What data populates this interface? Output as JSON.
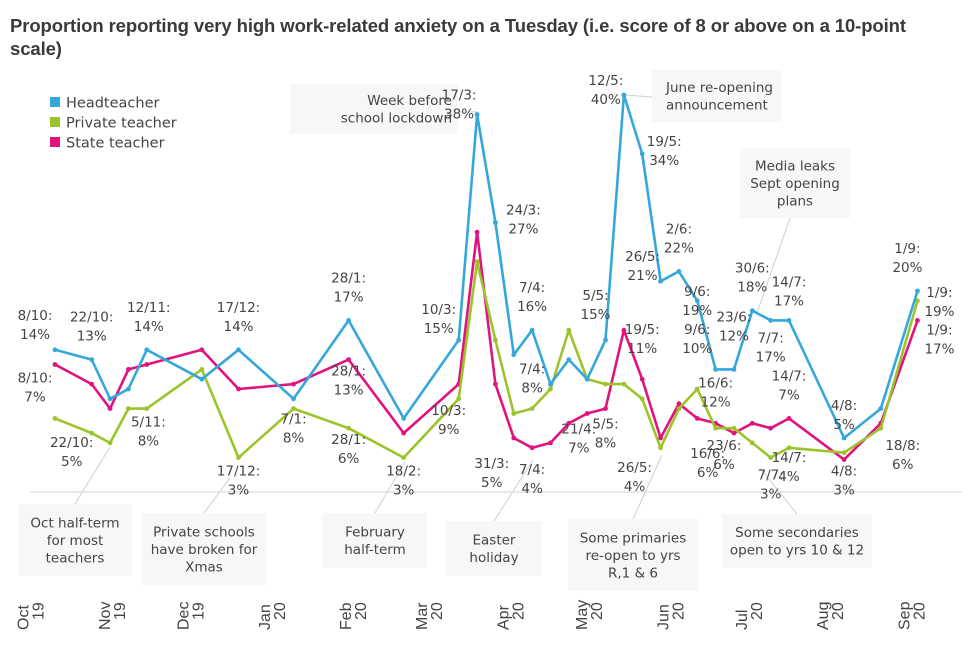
{
  "chart_data": {
    "type": "line",
    "title": "Proportion reporting very high work-related anxiety on a Tuesday (i.e. score of 8 or above on a 10-point scale)",
    "xlabel": "",
    "ylabel": "",
    "ylim": [
      0,
      45
    ],
    "grid": false,
    "legend_position": "top-left",
    "x": [
      "8/10",
      "22/10",
      "29/10",
      "5/11",
      "12/11",
      "3/12",
      "17/12",
      "7/1",
      "28/1",
      "18/2",
      "10/3",
      "17/3",
      "24/3",
      "31/3",
      "7/4",
      "14/4",
      "21/4",
      "28/4",
      "5/5",
      "12/5",
      "19/5",
      "26/5",
      "2/6",
      "9/6",
      "16/6",
      "23/6",
      "30/6",
      "7/7",
      "14/7",
      "4/8",
      "18/8",
      "1/9"
    ],
    "x_week_offsets": [
      0,
      2,
      3,
      4,
      5,
      8,
      10,
      13,
      16,
      19,
      22,
      23,
      24,
      25,
      26,
      27,
      28,
      29,
      30,
      31,
      32,
      33,
      34,
      35,
      36,
      37,
      38,
      39,
      40,
      43,
      45,
      47
    ],
    "x_tick_labels": [
      {
        "label": [
          "Oct",
          "19"
        ],
        "week": -1
      },
      {
        "label": [
          "Nov",
          "19"
        ],
        "week": 3.43
      },
      {
        "label": [
          "Dec",
          "19"
        ],
        "week": 7.71
      },
      {
        "label": [
          "Jan",
          "20"
        ],
        "week": 12.14
      },
      {
        "label": [
          "Feb",
          "20"
        ],
        "week": 16.57
      },
      {
        "label": [
          "Mar",
          "20"
        ],
        "week": 20.71
      },
      {
        "label": [
          "Apr",
          "20"
        ],
        "week": 25.14
      },
      {
        "label": [
          "May",
          "20"
        ],
        "week": 29.43
      },
      {
        "label": [
          "Jun",
          "20"
        ],
        "week": 33.86
      },
      {
        "label": [
          "Jul",
          "20"
        ],
        "week": 38.14
      },
      {
        "label": [
          "Aug",
          "20"
        ],
        "week": 42.57
      },
      {
        "label": [
          "Sep",
          "20"
        ],
        "week": 47
      }
    ],
    "series": [
      {
        "name": "Headteacher",
        "color": "#35a7db",
        "values": [
          14,
          13,
          9,
          10,
          14,
          11,
          14,
          9,
          17,
          7,
          15,
          38,
          27,
          13.5,
          16,
          10.5,
          13,
          11,
          15,
          40,
          34,
          21,
          22,
          19,
          12,
          12,
          18,
          17,
          17,
          5,
          8,
          20
        ]
      },
      {
        "name": "Private teacher",
        "color": "#9bc42a",
        "values": [
          7,
          5.5,
          4.5,
          8,
          8,
          12,
          3,
          8,
          6,
          3,
          9,
          23,
          15,
          7.5,
          8,
          10,
          16,
          11,
          10.5,
          10.5,
          9,
          4,
          8,
          10,
          6,
          6,
          4.5,
          3,
          4,
          3.5,
          6,
          19
        ]
      },
      {
        "name": "State teacher",
        "color": "#e0137f",
        "values": [
          12.5,
          10.5,
          8,
          12,
          12.5,
          14,
          10,
          10.5,
          13,
          5.5,
          10.5,
          26,
          10.5,
          5,
          4,
          4.5,
          6.5,
          7.5,
          8,
          16,
          11,
          5,
          8.5,
          7,
          6.5,
          5.5,
          6.5,
          6,
          7,
          2.8,
          6.5,
          17
        ]
      }
    ],
    "data_labels": [
      {
        "series": 0,
        "index": 0,
        "lines": [
          "8/10:",
          "14%"
        ]
      },
      {
        "series": 0,
        "index": 1,
        "lines": [
          "22/10:",
          "13%"
        ]
      },
      {
        "series": 0,
        "index": 4,
        "lines": [
          "12/11:",
          "14%"
        ]
      },
      {
        "series": 0,
        "index": 6,
        "lines": [
          "17/12:",
          "14%"
        ]
      },
      {
        "series": 0,
        "index": 8,
        "lines": [
          "28/1:",
          "17%"
        ]
      },
      {
        "series": 0,
        "index": 10,
        "lines": [
          "10/3:",
          "15%"
        ]
      },
      {
        "series": 0,
        "index": 11,
        "lines": [
          "17/3:",
          "38%"
        ]
      },
      {
        "series": 0,
        "index": 12,
        "lines": [
          "24/3:",
          "27%"
        ]
      },
      {
        "series": 0,
        "index": 14,
        "lines": [
          "7/4:",
          "16%"
        ]
      },
      {
        "series": 0,
        "index": 18,
        "lines": [
          "5/5:",
          "15%"
        ]
      },
      {
        "series": 0,
        "index": 19,
        "lines": [
          "12/5:",
          "40%"
        ]
      },
      {
        "series": 0,
        "index": 20,
        "lines": [
          "19/5:",
          "34%"
        ]
      },
      {
        "series": 0,
        "index": 22,
        "lines": [
          "2/6:",
          "22%"
        ]
      },
      {
        "series": 0,
        "index": 21,
        "lines": [
          "26/5:",
          "21%"
        ]
      },
      {
        "series": 0,
        "index": 23,
        "lines": [
          "9/6:",
          "19%"
        ]
      },
      {
        "series": 0,
        "index": 24,
        "lines": [
          "16/6:",
          "12%"
        ]
      },
      {
        "series": 0,
        "index": 25,
        "lines": [
          "23/6:",
          "12%"
        ]
      },
      {
        "series": 0,
        "index": 26,
        "lines": [
          "30/6:",
          "18%"
        ]
      },
      {
        "series": 0,
        "index": 27,
        "lines": [
          "7/7:",
          "17%"
        ]
      },
      {
        "series": 0,
        "index": 28,
        "lines": [
          "14/7:",
          "17%"
        ]
      },
      {
        "series": 0,
        "index": 29,
        "lines": [
          "4/8:",
          "5%"
        ]
      },
      {
        "series": 0,
        "index": 31,
        "lines": [
          "1/9:",
          "20%"
        ]
      },
      {
        "series": 1,
        "index": 0,
        "lines": [
          "8/10:",
          "7%"
        ]
      },
      {
        "series": 1,
        "index": 1,
        "lines": [
          "22/10:",
          "5%"
        ]
      },
      {
        "series": 1,
        "index": 3,
        "lines": [
          "5/11:",
          "8%"
        ]
      },
      {
        "series": 1,
        "index": 6,
        "lines": [
          "17/12:",
          "3%"
        ]
      },
      {
        "series": 1,
        "index": 7,
        "lines": [
          "7/1:",
          "8%"
        ]
      },
      {
        "series": 1,
        "index": 8,
        "lines": [
          "28/1:",
          "6%"
        ]
      },
      {
        "series": 1,
        "index": 9,
        "lines": [
          "18/2:",
          "3%"
        ]
      },
      {
        "series": 1,
        "index": 10,
        "lines": [
          "10/3:",
          "9%"
        ]
      },
      {
        "series": 1,
        "index": 14,
        "lines": [
          "7/4:",
          "8%"
        ]
      },
      {
        "series": 1,
        "index": 21,
        "lines": [
          "26/5:",
          "4%"
        ]
      },
      {
        "series": 1,
        "index": 23,
        "lines": [
          "9/6:",
          "10%"
        ]
      },
      {
        "series": 1,
        "index": 24,
        "lines": [
          "16/6:",
          "6%"
        ]
      },
      {
        "series": 1,
        "index": 25,
        "lines": [
          "23/6:",
          "6%"
        ]
      },
      {
        "series": 1,
        "index": 27,
        "lines": [
          "7/7:",
          "3%"
        ]
      },
      {
        "series": 1,
        "index": 28,
        "lines": [
          "14/7:",
          "4%"
        ]
      },
      {
        "series": 1,
        "index": 30,
        "lines": [
          "18/8:",
          "6%"
        ]
      },
      {
        "series": 1,
        "index": 31,
        "lines": [
          "1/9:",
          "19%"
        ]
      },
      {
        "series": 2,
        "index": 8,
        "lines": [
          "28/1:",
          "13%"
        ]
      },
      {
        "series": 2,
        "index": 13,
        "lines": [
          "31/3:",
          "5%"
        ]
      },
      {
        "series": 2,
        "index": 14,
        "lines": [
          "7/4:",
          "4%"
        ]
      },
      {
        "series": 2,
        "index": 16,
        "lines": [
          "21/4:",
          "7%"
        ]
      },
      {
        "series": 2,
        "index": 18,
        "lines": [
          "5/5:",
          "8%"
        ]
      },
      {
        "series": 2,
        "index": 20,
        "lines": [
          "19/5:",
          "11%"
        ]
      },
      {
        "series": 2,
        "index": 28,
        "lines": [
          "14/7:",
          "7%"
        ]
      },
      {
        "series": 2,
        "index": 29,
        "lines": [
          "4/8:",
          "3%"
        ]
      },
      {
        "series": 2,
        "index": 31,
        "lines": [
          "1/9:",
          "17%"
        ]
      }
    ],
    "annotations": [
      {
        "lines": [
          "Week before",
          "school lockdown"
        ],
        "week": 23
      },
      {
        "lines": [
          "June re-opening",
          "announcement"
        ],
        "week": 31
      },
      {
        "lines": [
          "Media leaks",
          "Sept opening",
          "plans"
        ],
        "week": 38
      },
      {
        "lines": [
          "Oct half-term",
          "for most",
          "teachers"
        ],
        "week": 3
      },
      {
        "lines": [
          "Private schools",
          "have broken for",
          "Xmas"
        ],
        "week": 10
      },
      {
        "lines": [
          "February",
          "half-term"
        ],
        "week": 19
      },
      {
        "lines": [
          "Easter",
          "holiday"
        ],
        "week": 26
      },
      {
        "lines": [
          "Some primaries",
          "re-open to yrs",
          "R,1 & 6"
        ],
        "week": 33
      },
      {
        "lines": [
          "Some secondaries",
          "open to yrs 10 & 12"
        ],
        "week": 39
      }
    ]
  }
}
